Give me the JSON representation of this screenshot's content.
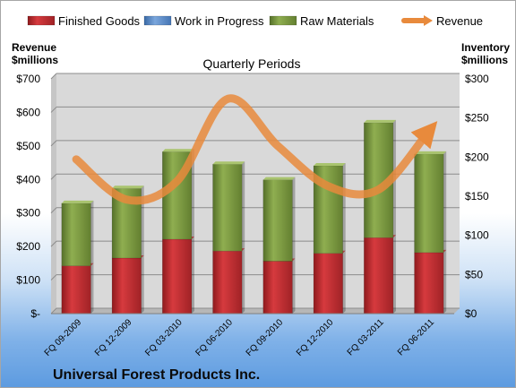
{
  "chart_data": {
    "type": "bar",
    "stacked": true,
    "title": "Quarterly Periods",
    "subtitle": "Universal Forest Products Inc.",
    "left_axis_title": [
      "Revenue",
      "$millions"
    ],
    "right_axis_title": [
      "Inventory",
      "$millions"
    ],
    "categories": [
      "FQ 09-2009",
      "FQ 12-2009",
      "FQ 03-2010",
      "FQ 06-2010",
      "FQ 09-2010",
      "FQ 12-2010",
      "FQ 03-2011",
      "FQ 06-2011"
    ],
    "left_ylim": [
      0,
      700
    ],
    "right_ylim": [
      0,
      300
    ],
    "left_ticks": [
      "$-",
      "$100",
      "$200",
      "$300",
      "$400",
      "$500",
      "$600",
      "$700"
    ],
    "right_ticks": [
      "$0",
      "$50",
      "$100",
      "$150",
      "$200",
      "$250",
      "$300"
    ],
    "legend_position": "top",
    "grid": true,
    "series": [
      {
        "name": "Finished Goods",
        "axis": "right",
        "kind": "bar",
        "color": "#c0282c",
        "values": [
          61,
          71,
          95,
          80,
          67,
          77,
          97,
          78
        ]
      },
      {
        "name": "Work in Progress",
        "axis": "right",
        "kind": "bar",
        "color": "#4f81bd",
        "values": [
          0,
          0,
          0,
          0,
          0,
          0,
          0,
          0
        ]
      },
      {
        "name": "Raw Materials",
        "axis": "right",
        "kind": "bar",
        "color": "#77933c",
        "values": [
          80,
          89,
          112,
          111,
          104,
          112,
          147,
          126
        ]
      },
      {
        "name": "Revenue",
        "axis": "left",
        "kind": "line",
        "color": "#e88a3c",
        "values": [
          460,
          340,
          395,
          640,
          500,
          380,
          370,
          545
        ]
      }
    ]
  }
}
